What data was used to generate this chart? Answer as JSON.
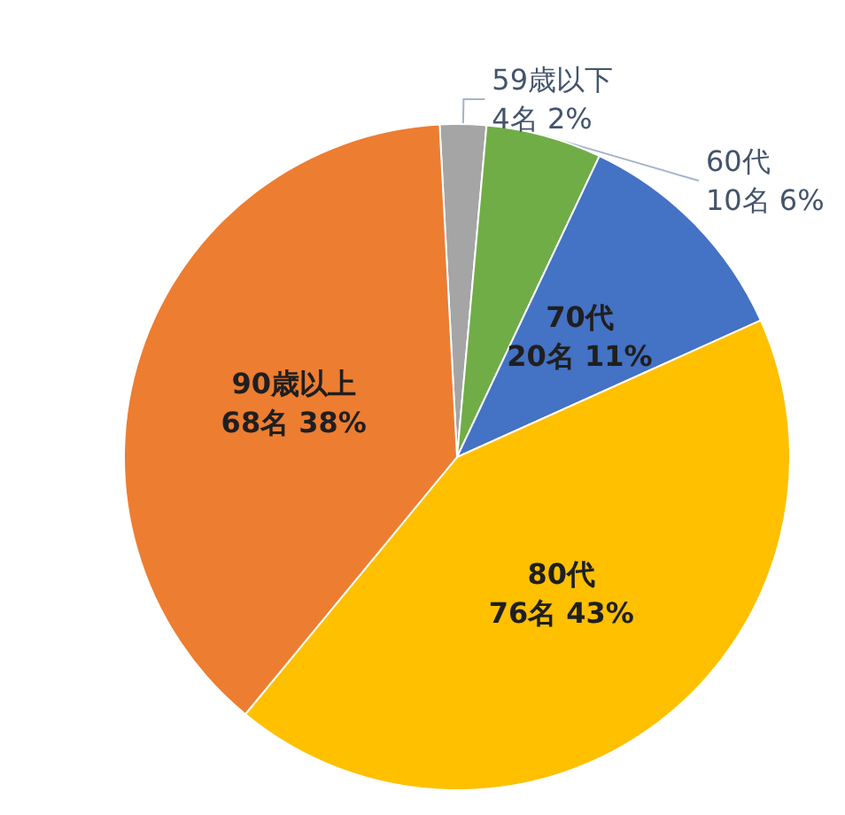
{
  "chart_data": {
    "type": "pie",
    "categories": [
      "59歳以下",
      "60代",
      "70代",
      "80代",
      "90歳以上"
    ],
    "values": [
      4,
      10,
      20,
      76,
      68
    ],
    "value_labels": [
      "4名 2%",
      "10名 6%",
      "20名 11%",
      "76名 43%",
      "68名 38%"
    ],
    "colors": [
      "#a5a5a5",
      "#70ad47",
      "#4472c4",
      "#ffc000",
      "#ed7d31"
    ],
    "legend": false
  }
}
